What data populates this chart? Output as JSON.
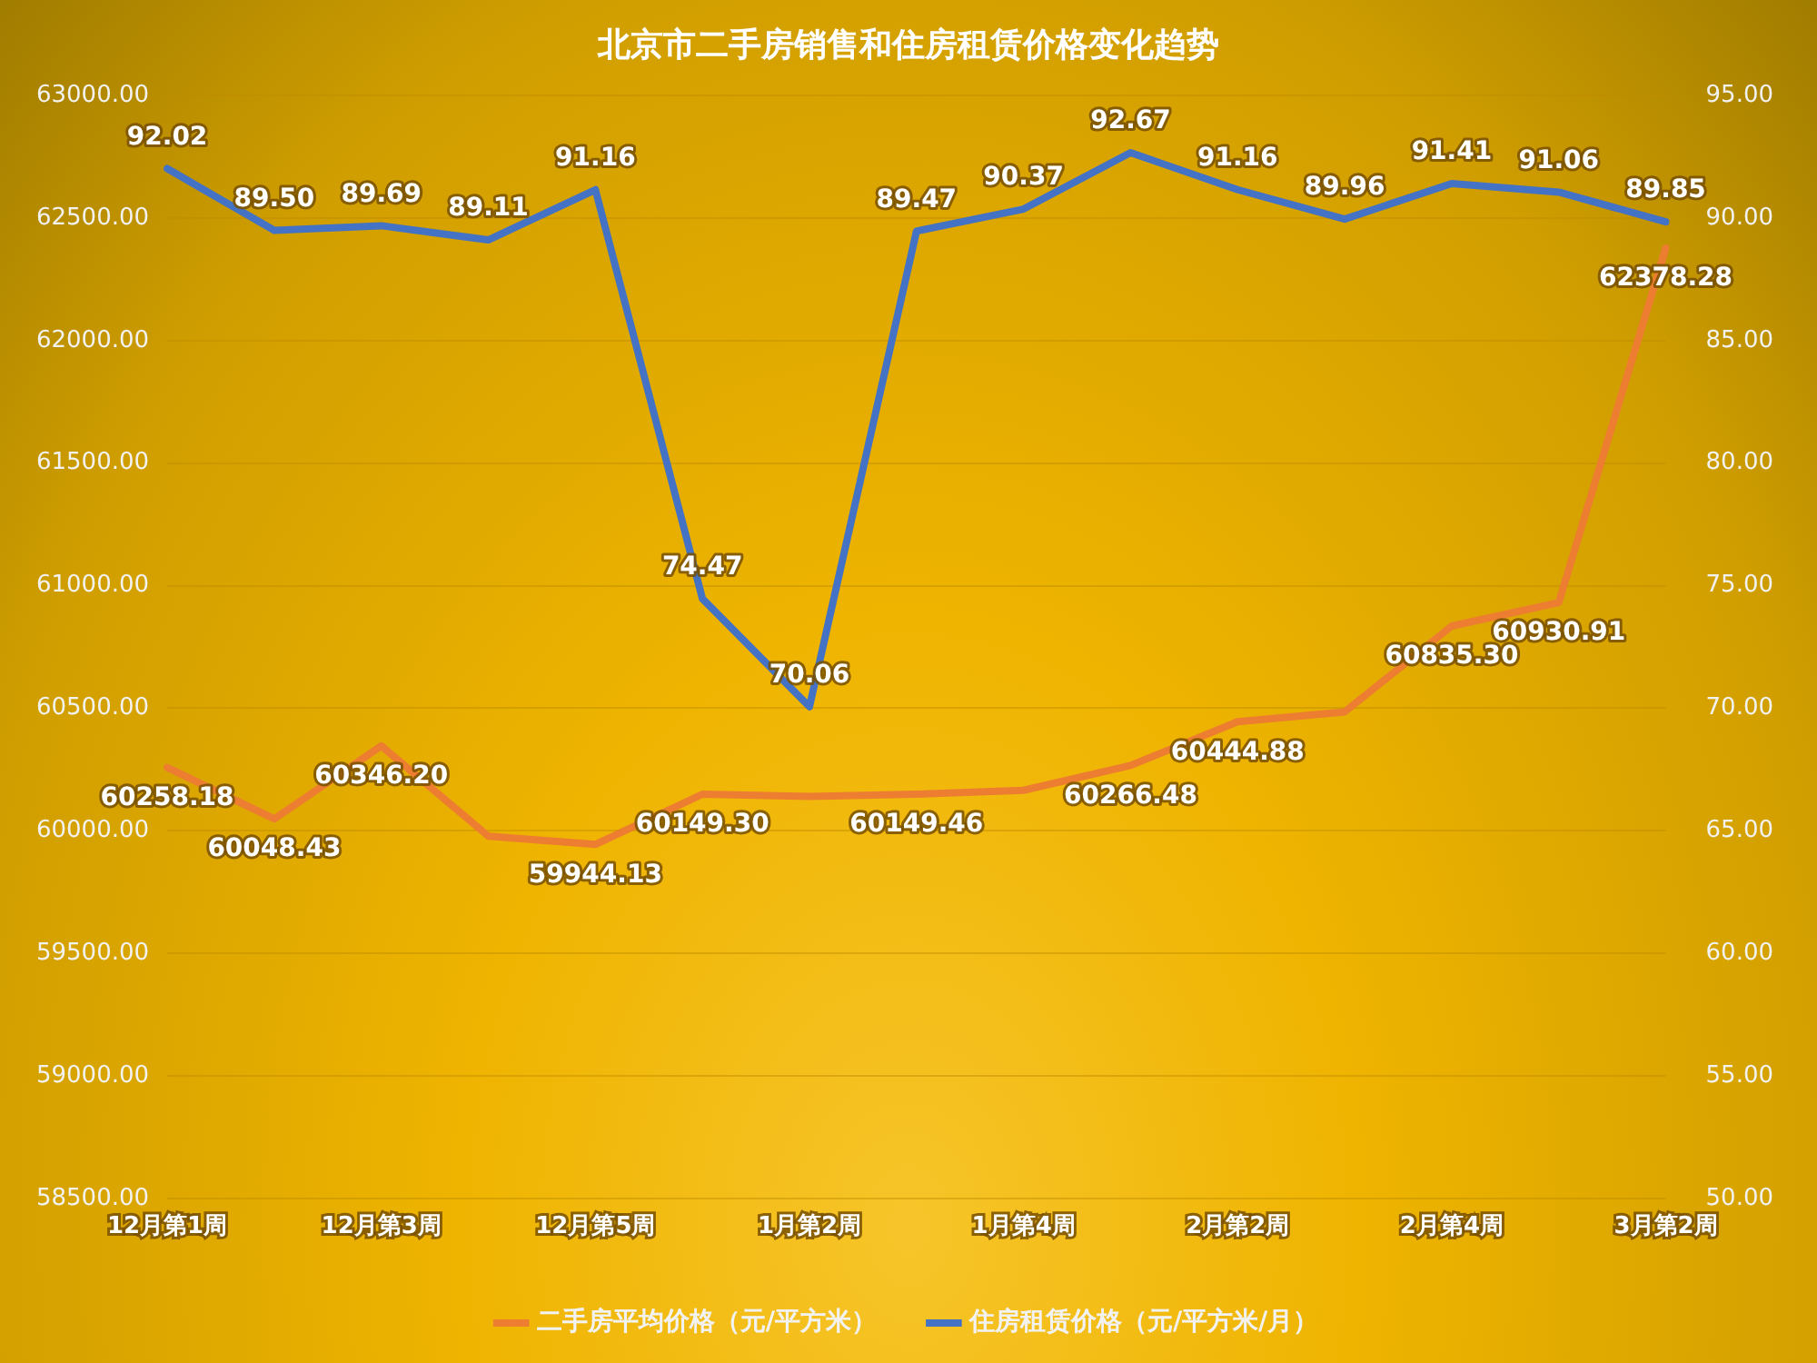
{
  "chart_data": {
    "type": "line",
    "title": "北京市二手房销售和住房租赁价格变化趋势",
    "categories": [
      "12月第1周",
      null,
      "12月第3周",
      null,
      "12月第5周",
      null,
      "1月第2周",
      null,
      "1月第4周",
      null,
      "2月第2周",
      null,
      "2月第4周",
      null,
      "3月第2周"
    ],
    "series": [
      {
        "name": "二手房平均价格（元/平方米）",
        "color": "#ed7d31",
        "values": [
          60258.18,
          60048.43,
          60346.2,
          59978,
          59944.13,
          60149.3,
          60140,
          60149.46,
          60165,
          60266.48,
          60444.88,
          60485,
          60835.3,
          60930.91,
          62378.28
        ],
        "value_labels": [
          "60258.18",
          "60048.43",
          "60346.20",
          null,
          "59944.13",
          "60149.30",
          null,
          "60149.46",
          null,
          "60266.48",
          "60444.88",
          null,
          "60835.30",
          "60930.91",
          "62378.28"
        ]
      },
      {
        "name": "住房租赁价格（元/平方米/月）",
        "color": "#4472c4",
        "axis": "y2",
        "values": [
          92.02,
          89.5,
          89.69,
          89.11,
          91.16,
          74.47,
          70.06,
          89.47,
          90.37,
          92.67,
          91.16,
          89.96,
          91.41,
          91.06,
          89.85
        ],
        "value_labels": [
          "92.02",
          "89.50",
          "89.69",
          "89.11",
          "91.16",
          "74.47",
          "70.06",
          "89.47",
          "90.37",
          "92.67",
          "91.16",
          "89.96",
          "91.41",
          "91.06",
          "89.85"
        ]
      }
    ],
    "ylim": [
      58500,
      63000
    ],
    "yticks": [
      {
        "value": 58500,
        "label": "58500.00"
      },
      {
        "value": 59000,
        "label": "59000.00"
      },
      {
        "value": 59500,
        "label": "59500.00"
      },
      {
        "value": 60000,
        "label": "60000.00"
      },
      {
        "value": 60500,
        "label": "60500.00"
      },
      {
        "value": 61000,
        "label": "61000.00"
      },
      {
        "value": 61500,
        "label": "61500.00"
      },
      {
        "value": 62000,
        "label": "62000.00"
      },
      {
        "value": 62500,
        "label": "62500.00"
      },
      {
        "value": 63000,
        "label": "63000.00"
      }
    ],
    "y2lim": [
      50,
      95
    ],
    "y2ticks": [
      {
        "value": 50,
        "label": "50.00"
      },
      {
        "value": 55,
        "label": "55.00"
      },
      {
        "value": 60,
        "label": "60.00"
      },
      {
        "value": 65,
        "label": "65.00"
      },
      {
        "value": 70,
        "label": "70.00"
      },
      {
        "value": 75,
        "label": "75.00"
      },
      {
        "value": 80,
        "label": "80.00"
      },
      {
        "value": 85,
        "label": "85.00"
      },
      {
        "value": 90,
        "label": "90.00"
      },
      {
        "value": 95,
        "label": "95.00"
      }
    ],
    "grid": "y",
    "legend": "bottom",
    "marker": "none",
    "line_style": "solid"
  }
}
